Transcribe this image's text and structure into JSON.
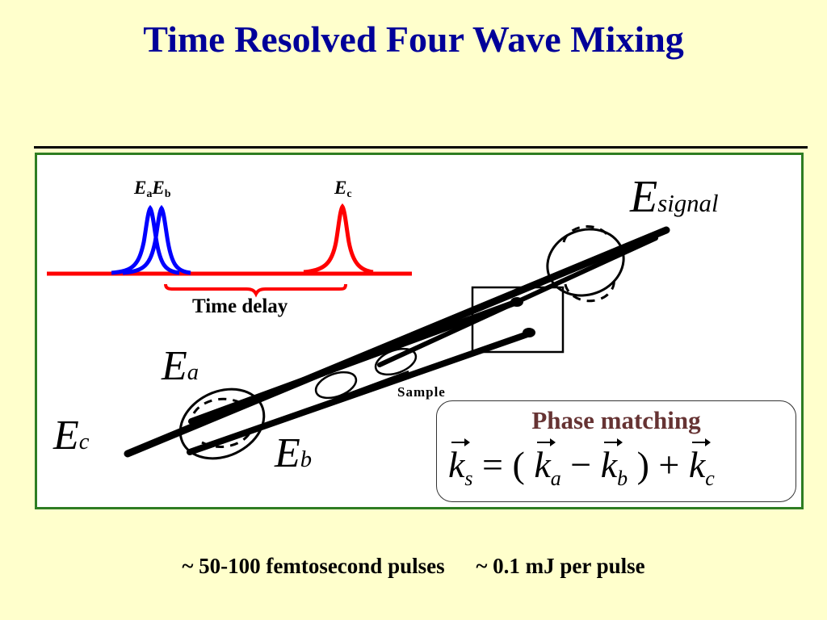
{
  "title": "Time Resolved Four Wave Mixing",
  "pulses": {
    "label_a_base": "E",
    "label_a_sub": "a",
    "label_b_base": "E",
    "label_b_sub": "b",
    "label_c_base": "E",
    "label_c_sub": "c",
    "time_delay": "Time delay"
  },
  "geometry_labels": {
    "signal_base": "E",
    "signal_sub": "signal",
    "ea_base": "E",
    "ea_sub": "a",
    "eb_base": "E",
    "eb_sub": "b",
    "ec_base": "E",
    "ec_sub": "c",
    "sample": "Sample"
  },
  "phase_matching": {
    "title": "Phase matching",
    "ks_sub": "s",
    "ka_sub": "a",
    "kb_sub": "b",
    "kc_sub": "c",
    "k": "k"
  },
  "footer": {
    "left": "~ 50-100 femtosecond pulses",
    "right": "~ 0.1 mJ per pulse"
  },
  "colors": {
    "title": "#000099",
    "frame": "#2E7D22",
    "background": "#FFFFCC",
    "pulse_ab": "#0000FF",
    "pulse_c": "#FF0000",
    "phase_title": "#663333"
  }
}
